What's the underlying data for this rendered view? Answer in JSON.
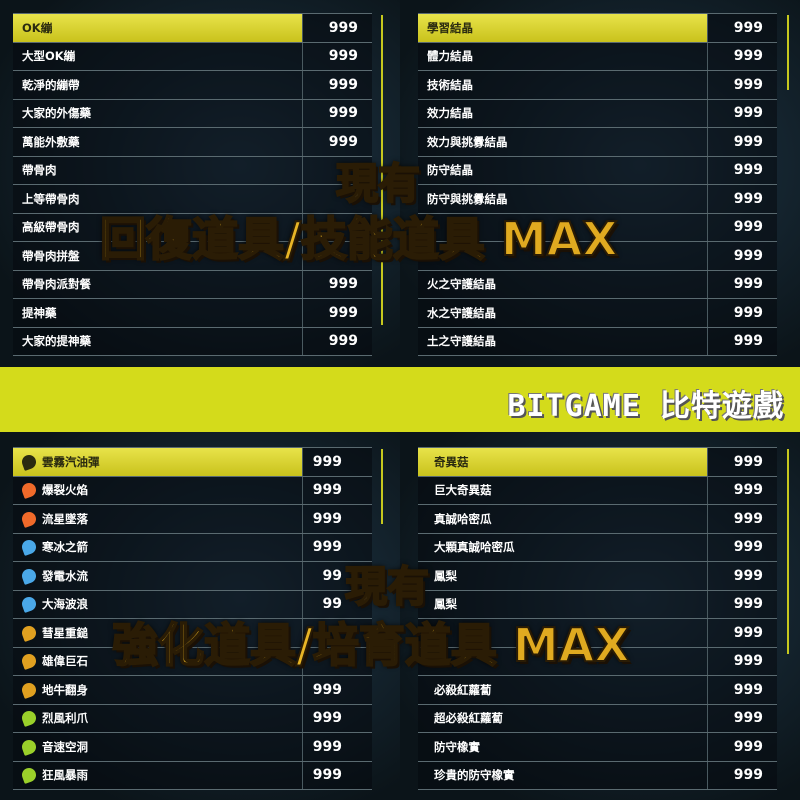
{
  "banner": {
    "brand": "BITGAME 比特遊戲",
    "color": "#d4db1b"
  },
  "overlays": {
    "top": {
      "line1": "現有",
      "line2": "回復道具/技能道具",
      "max": "MAX"
    },
    "bottom": {
      "line1": "現有",
      "line2": "強化道具/培育道具",
      "max": "MAX"
    }
  },
  "panels": {
    "recovery": {
      "items": [
        {
          "name": "OK繃",
          "qty": "999"
        },
        {
          "name": "大型OK繃",
          "qty": "999"
        },
        {
          "name": "乾淨的繃帶",
          "qty": "999"
        },
        {
          "name": "大家的外傷藥",
          "qty": "999"
        },
        {
          "name": "萬能外敷藥",
          "qty": "999"
        },
        {
          "name": "帶骨肉",
          "qty": ""
        },
        {
          "name": "上等帶骨肉",
          "qty": ""
        },
        {
          "name": "高級帶骨肉",
          "qty": ""
        },
        {
          "name": "帶骨肉拼盤",
          "qty": ""
        },
        {
          "name": "帶骨肉派對餐",
          "qty": "999"
        },
        {
          "name": "提神藥",
          "qty": "999"
        },
        {
          "name": "大家的提神藥",
          "qty": "999"
        }
      ]
    },
    "skill": {
      "items": [
        {
          "name": "學習結晶",
          "qty": "999"
        },
        {
          "name": "體力結晶",
          "qty": "999"
        },
        {
          "name": "技術結晶",
          "qty": "999"
        },
        {
          "name": "效力結晶",
          "qty": "999"
        },
        {
          "name": "效力與挑釁結晶",
          "qty": "999"
        },
        {
          "name": "防守結晶",
          "qty": "999"
        },
        {
          "name": "防守與挑釁結晶",
          "qty": "999"
        },
        {
          "name": "",
          "qty": "999"
        },
        {
          "name": "",
          "qty": "999"
        },
        {
          "name": "火之守護結晶",
          "qty": "999"
        },
        {
          "name": "水之守護結晶",
          "qty": "999"
        },
        {
          "name": "土之守護結晶",
          "qty": "999"
        }
      ]
    },
    "enhance": {
      "items": [
        {
          "name": "雲霧汽油彈",
          "qty": "999",
          "icon": "fireball-icon",
          "color": "#2a2a10"
        },
        {
          "name": "爆裂火焰",
          "qty": "999",
          "icon": "fireball-icon",
          "color": "#f06a2a"
        },
        {
          "name": "流星墜落",
          "qty": "999",
          "icon": "fireball-icon",
          "color": "#f06a2a"
        },
        {
          "name": "寒冰之箭",
          "qty": "999",
          "icon": "fireball-icon",
          "color": "#4aa8e8"
        },
        {
          "name": "發電水流",
          "qty": "99",
          "icon": "fireball-icon",
          "color": "#4aa8e8"
        },
        {
          "name": "大海波浪",
          "qty": "99",
          "icon": "fireball-icon",
          "color": "#4aa8e8"
        },
        {
          "name": "彗星重鎚",
          "qty": "",
          "icon": "fireball-icon",
          "color": "#e0a020"
        },
        {
          "name": "雄偉巨石",
          "qty": "",
          "icon": "fireball-icon",
          "color": "#e0a020"
        },
        {
          "name": "地牛翻身",
          "qty": "999",
          "icon": "fireball-icon",
          "color": "#e0a020"
        },
        {
          "name": "烈風利爪",
          "qty": "999",
          "icon": "fireball-icon",
          "color": "#9ad02a"
        },
        {
          "name": "音速空洞",
          "qty": "999",
          "icon": "fireball-icon",
          "color": "#9ad02a"
        },
        {
          "name": "狂風暴雨",
          "qty": "999",
          "icon": "fireball-icon",
          "color": "#9ad02a"
        }
      ]
    },
    "growth": {
      "items": [
        {
          "name": "奇異菇",
          "qty": "999"
        },
        {
          "name": "巨大奇異菇",
          "qty": "999"
        },
        {
          "name": "真誠哈密瓜",
          "qty": "999"
        },
        {
          "name": "大顆真誠哈密瓜",
          "qty": "999"
        },
        {
          "name": "鳳梨",
          "qty": "999"
        },
        {
          "name": "鳳梨",
          "qty": "999"
        },
        {
          "name": "",
          "qty": "999"
        },
        {
          "name": "",
          "qty": "999"
        },
        {
          "name": "必殺紅蘿蔔",
          "qty": "999"
        },
        {
          "name": "超必殺紅蘿蔔",
          "qty": "999"
        },
        {
          "name": "防守橡實",
          "qty": "999"
        },
        {
          "name": "珍貴的防守橡實",
          "qty": "999"
        }
      ]
    }
  }
}
